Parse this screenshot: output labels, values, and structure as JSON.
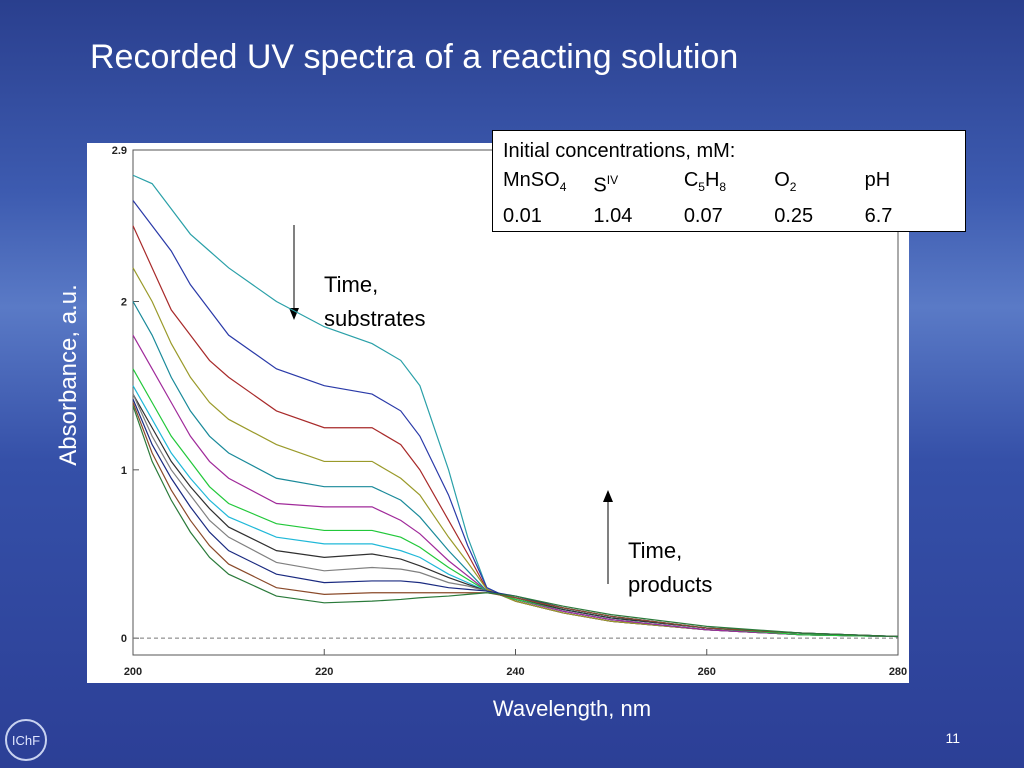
{
  "slide": {
    "title": "Recorded UV spectra of a reacting solution",
    "page_number": "11",
    "logo": "IChF"
  },
  "chart_data": {
    "type": "line",
    "x_label": "Wavelength, nm",
    "y_label": "Absorbance, a.u.",
    "xlim": [
      200,
      280
    ],
    "ylim": [
      -0.1,
      2.9
    ],
    "xticks": [
      200,
      220,
      240,
      260,
      280
    ],
    "yticks": [
      0,
      1,
      2,
      2.9
    ],
    "zero_line": true,
    "annotations": [
      {
        "lines": [
          "Time,",
          "substrates"
        ]
      },
      {
        "lines": [
          "Time,",
          "products"
        ]
      }
    ],
    "inset": {
      "header": "Initial  concentrations, mM:",
      "columns": [
        [
          {
            "text": "MnSO"
          },
          {
            "sub": "4"
          }
        ],
        [
          {
            "text": "S"
          },
          {
            "sup": "IV"
          }
        ],
        [
          {
            "text": "C"
          },
          {
            "sub": "5"
          },
          {
            "text": "H"
          },
          {
            "sub": "8"
          }
        ],
        [
          {
            "text": "O"
          },
          {
            "sub": "2"
          }
        ],
        [
          {
            "text": "pH"
          }
        ]
      ],
      "values": [
        0.01,
        1.04,
        0.07,
        0.25,
        6.7
      ]
    },
    "x": [
      200,
      202,
      204,
      206,
      208,
      210,
      215,
      220,
      225,
      228,
      230,
      233,
      235,
      237,
      240,
      245,
      250,
      260,
      270,
      280
    ],
    "series": [
      {
        "color": "#2aa0a8",
        "values": [
          2.75,
          2.7,
          2.55,
          2.4,
          2.3,
          2.2,
          2.0,
          1.85,
          1.75,
          1.65,
          1.5,
          1.0,
          0.6,
          0.3,
          0.22,
          0.15,
          0.1,
          0.05,
          0.02,
          0.01
        ]
      },
      {
        "color": "#2a3aa8",
        "values": [
          2.6,
          2.45,
          2.3,
          2.1,
          1.95,
          1.8,
          1.6,
          1.5,
          1.45,
          1.35,
          1.2,
          0.85,
          0.55,
          0.3,
          0.22,
          0.15,
          0.1,
          0.05,
          0.02,
          0.01
        ]
      },
      {
        "color": "#a82a2a",
        "values": [
          2.45,
          2.2,
          1.95,
          1.8,
          1.65,
          1.55,
          1.35,
          1.25,
          1.25,
          1.15,
          1.0,
          0.7,
          0.5,
          0.29,
          0.22,
          0.15,
          0.1,
          0.05,
          0.02,
          0.01
        ]
      },
      {
        "color": "#9a9a2a",
        "values": [
          2.2,
          2.0,
          1.75,
          1.55,
          1.4,
          1.3,
          1.15,
          1.05,
          1.05,
          0.95,
          0.85,
          0.6,
          0.45,
          0.29,
          0.22,
          0.15,
          0.1,
          0.05,
          0.02,
          0.01
        ]
      },
      {
        "color": "#1a8a9a",
        "values": [
          2.0,
          1.8,
          1.55,
          1.35,
          1.2,
          1.1,
          0.95,
          0.9,
          0.9,
          0.82,
          0.72,
          0.52,
          0.4,
          0.28,
          0.23,
          0.16,
          0.11,
          0.05,
          0.02,
          0.01
        ]
      },
      {
        "color": "#a02a9a",
        "values": [
          1.8,
          1.6,
          1.4,
          1.2,
          1.05,
          0.95,
          0.8,
          0.78,
          0.78,
          0.7,
          0.62,
          0.46,
          0.37,
          0.28,
          0.23,
          0.16,
          0.11,
          0.05,
          0.02,
          0.01
        ]
      },
      {
        "color": "#22c83a",
        "values": [
          1.6,
          1.4,
          1.2,
          1.05,
          0.9,
          0.8,
          0.68,
          0.64,
          0.64,
          0.6,
          0.54,
          0.42,
          0.35,
          0.28,
          0.23,
          0.17,
          0.12,
          0.06,
          0.02,
          0.01
        ]
      },
      {
        "color": "#20b8d8",
        "values": [
          1.5,
          1.3,
          1.1,
          0.95,
          0.82,
          0.72,
          0.6,
          0.56,
          0.56,
          0.52,
          0.48,
          0.38,
          0.33,
          0.28,
          0.24,
          0.17,
          0.12,
          0.06,
          0.03,
          0.01
        ]
      },
      {
        "color": "#303030",
        "values": [
          1.45,
          1.25,
          1.05,
          0.9,
          0.77,
          0.66,
          0.52,
          0.48,
          0.5,
          0.47,
          0.43,
          0.36,
          0.32,
          0.28,
          0.24,
          0.17,
          0.12,
          0.06,
          0.03,
          0.01
        ]
      },
      {
        "color": "#808080",
        "values": [
          1.45,
          1.2,
          1.0,
          0.85,
          0.7,
          0.6,
          0.45,
          0.4,
          0.42,
          0.41,
          0.39,
          0.33,
          0.31,
          0.28,
          0.24,
          0.18,
          0.13,
          0.06,
          0.03,
          0.01
        ]
      },
      {
        "color": "#1a2a80",
        "values": [
          1.42,
          1.15,
          0.95,
          0.78,
          0.63,
          0.52,
          0.38,
          0.33,
          0.34,
          0.34,
          0.33,
          0.3,
          0.29,
          0.28,
          0.25,
          0.18,
          0.13,
          0.06,
          0.03,
          0.01
        ]
      },
      {
        "color": "#8a4a2a",
        "values": [
          1.4,
          1.1,
          0.88,
          0.7,
          0.55,
          0.44,
          0.3,
          0.26,
          0.27,
          0.27,
          0.27,
          0.27,
          0.27,
          0.27,
          0.24,
          0.18,
          0.13,
          0.06,
          0.03,
          0.01
        ]
      },
      {
        "color": "#2a7a3a",
        "values": [
          1.38,
          1.05,
          0.82,
          0.63,
          0.48,
          0.38,
          0.25,
          0.21,
          0.22,
          0.23,
          0.24,
          0.25,
          0.26,
          0.27,
          0.25,
          0.19,
          0.14,
          0.07,
          0.03,
          0.01
        ]
      }
    ]
  }
}
